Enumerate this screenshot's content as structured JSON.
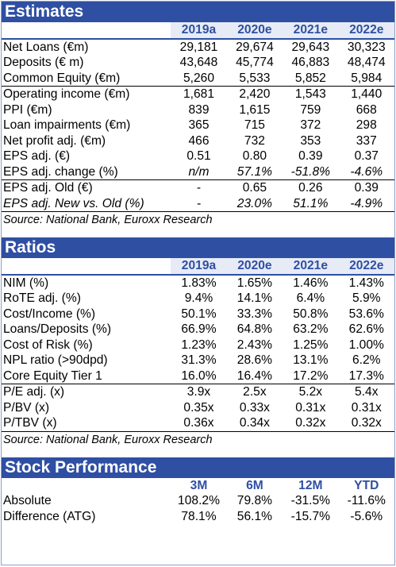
{
  "estimates": {
    "title": "Estimates",
    "years": [
      "2019a",
      "2020e",
      "2021e",
      "2022e"
    ],
    "rows": [
      {
        "label": "Net Loans (€m)",
        "values": [
          "29,181",
          "29,674",
          "29,643",
          "30,323"
        ]
      },
      {
        "label": "Deposits (€ m)",
        "values": [
          "43,648",
          "45,774",
          "46,883",
          "48,474"
        ]
      },
      {
        "label": "Common Equity (€m)",
        "values": [
          "5,260",
          "5,533",
          "5,852",
          "5,984"
        ]
      },
      {
        "label": "Operating income (€m)",
        "values": [
          "1,681",
          "2,420",
          "1,543",
          "1,440"
        ]
      },
      {
        "label": "PPI (€m)",
        "values": [
          "839",
          "1,615",
          "759",
          "668"
        ]
      },
      {
        "label": "Loan impairments (€m)",
        "values": [
          "365",
          "715",
          "372",
          "298"
        ]
      },
      {
        "label": "Net profit adj. (€m)",
        "values": [
          "466",
          "732",
          "353",
          "337"
        ]
      },
      {
        "label": "EPS adj. (€)",
        "values": [
          "0.51",
          "0.80",
          "0.39",
          "0.37"
        ]
      },
      {
        "label": "EPS adj. change (%)",
        "values": [
          "n/m",
          "57.1%",
          "-51.8%",
          "-4.6%"
        ]
      },
      {
        "label": "EPS adj. Old (€)",
        "values": [
          "-",
          "0.65",
          "0.26",
          "0.39"
        ]
      },
      {
        "label": "EPS adj. New vs. Old (%)",
        "values": [
          "-",
          "23.0%",
          "51.1%",
          "-4.9%"
        ]
      }
    ],
    "source": "Source: National Bank, Euroxx Research"
  },
  "ratios": {
    "title": "Ratios",
    "years": [
      "2019a",
      "2020e",
      "2021e",
      "2022e"
    ],
    "rows": [
      {
        "label": "NIM (%)",
        "values": [
          "1.83%",
          "1.65%",
          "1.46%",
          "1.43%"
        ]
      },
      {
        "label": "RoTE adj. (%)",
        "values": [
          "9.4%",
          "14.1%",
          "6.4%",
          "5.9%"
        ]
      },
      {
        "label": "Cost/Income (%)",
        "values": [
          "50.1%",
          "33.3%",
          "50.8%",
          "53.6%"
        ]
      },
      {
        "label": "Loans/Deposits (%)",
        "values": [
          "66.9%",
          "64.8%",
          "63.2%",
          "62.6%"
        ]
      },
      {
        "label": "Cost of Risk (%)",
        "values": [
          "1.23%",
          "2.43%",
          "1.25%",
          "1.00%"
        ]
      },
      {
        "label": "NPL ratio (>90dpd)",
        "values": [
          "31.3%",
          "28.6%",
          "13.1%",
          "6.2%"
        ]
      },
      {
        "label": "Core Equity Tier 1",
        "values": [
          "16.0%",
          "16.4%",
          "17.2%",
          "17.3%"
        ]
      },
      {
        "label": "P/E adj. (x)",
        "values": [
          "3.9x",
          "2.5x",
          "5.2x",
          "5.4x"
        ]
      },
      {
        "label": "P/BV (x)",
        "values": [
          "0.35x",
          "0.33x",
          "0.31x",
          "0.31x"
        ]
      },
      {
        "label": "P/TBV (x)",
        "values": [
          "0.36x",
          "0.34x",
          "0.32x",
          "0.32x"
        ]
      }
    ],
    "source": "Source: National Bank, Euroxx Research"
  },
  "stock_performance": {
    "title": "Stock Performance",
    "periods": [
      "3M",
      "6M",
      "12M",
      "YTD"
    ],
    "rows": [
      {
        "label": "Absolute",
        "values": [
          "108.2%",
          "79.8%",
          "-31.5%",
          "-11.6%"
        ]
      },
      {
        "label": "Difference (ATG)",
        "values": [
          "78.1%",
          "56.1%",
          "-15.7%",
          "-5.6%"
        ]
      }
    ]
  },
  "colors": {
    "header_band": "#2f4fa3",
    "year_header_text": "#2f4fa3",
    "year_header_bg": "#e6ebf5"
  }
}
